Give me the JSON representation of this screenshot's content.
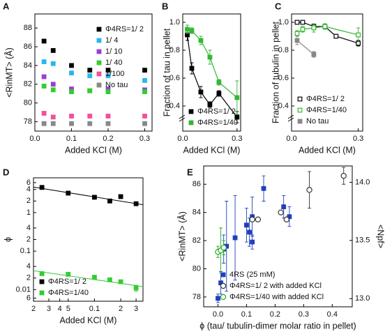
{
  "chart_data": [
    {
      "type": "scatter",
      "panel": "A",
      "xlabel": "Added KCl (M)",
      "ylabel": "<RinMT> (Å)",
      "x": [
        0.025,
        0.05,
        0.1,
        0.15,
        0.2,
        0.3
      ],
      "xlim": [
        0,
        0.32
      ],
      "xticks": [
        {
          "value": 0,
          "label": "0.0"
        },
        0.1,
        0.2,
        0.3
      ],
      "ylim": [
        77,
        89.5
      ],
      "yticks": [
        78,
        80,
        82,
        84,
        86,
        88
      ],
      "legend": "top-right",
      "series": [
        {
          "name": "Φ4RS=1/ 2",
          "color": "#000000",
          "marker": "square",
          "values": [
            86.6,
            85.6,
            84.0,
            83.5,
            83.5,
            83.5
          ]
        },
        {
          "name": "1/ 4",
          "color": "#29b6f0",
          "marker": "square",
          "values": [
            84.4,
            84.2,
            83.2,
            82.9,
            82.9,
            82.4
          ]
        },
        {
          "name": "1/ 10",
          "color": "#9b3fd0",
          "marker": "square",
          "values": [
            82.8,
            82.0,
            81.5,
            81.3,
            81.5,
            81.4
          ]
        },
        {
          "name": "1/ 40",
          "color": "#33cc33",
          "marker": "square",
          "values": [
            81.8,
            81.4,
            81.2,
            81.3,
            81.2,
            81.2
          ]
        },
        {
          "name": "1/100",
          "color": "#f0509a",
          "marker": "square",
          "values": [
            78.9,
            78.5,
            78.6,
            78.6,
            78.6,
            78.6
          ]
        },
        {
          "name": "No tau",
          "color": "#888888",
          "marker": "square",
          "values": [
            77.8,
            77.8,
            77.8,
            77.8,
            77.8,
            77.8
          ]
        }
      ]
    },
    {
      "type": "line",
      "panel": "B",
      "xlabel": "Added KCl (M)",
      "ylabel": "Fraction of tau in pellet",
      "x": [
        0.025,
        0.05,
        0.1,
        0.15,
        0.2,
        0.3
      ],
      "xlim": [
        0,
        0.32
      ],
      "xticks": [
        {
          "value": 0,
          "label": "0.0"
        },
        0.3
      ],
      "ylim": [
        0.22,
        1.06
      ],
      "yticks": [
        0.4,
        0.6,
        0.8,
        {
          "value": 1,
          "label": "1.0"
        }
      ],
      "axis_break": true,
      "legend": "bottom-left",
      "series": [
        {
          "name": "Φ4RS=1/ 2",
          "color": "#000000",
          "marker": "square",
          "values": [
            0.91,
            0.67,
            0.5,
            0.41,
            0.49,
            0.32
          ],
          "errors": [
            0.04,
            0.04,
            0.04,
            0.02,
            0.02,
            0.04
          ]
        },
        {
          "name": "Φ4RS=1/40",
          "color": "#33b833",
          "marker": "square",
          "values": [
            0.95,
            0.94,
            0.87,
            0.75,
            0.57,
            0.46
          ],
          "errors": [
            0.03,
            0.02,
            0.03,
            0.05,
            0.02,
            0.12
          ]
        }
      ]
    },
    {
      "type": "line",
      "panel": "C",
      "xlabel": "Added KCl (M)",
      "ylabel": "Fraction of tubulin in pellet",
      "xlim": [
        0,
        0.32
      ],
      "xticks": [
        {
          "value": 0,
          "label": "0.0"
        },
        0.3
      ],
      "ylim": [
        0.22,
        1.06
      ],
      "yticks": [
        0.4,
        0.6,
        0.8,
        {
          "value": 1,
          "label": "1.0"
        }
      ],
      "axis_break": true,
      "legend": "bottom-right",
      "series": [
        {
          "name": "Φ4RS=1/ 2",
          "color": "#000000",
          "marker": "open-square",
          "x": [
            0.025,
            0.05,
            0.1,
            0.15,
            0.2,
            0.3
          ],
          "values": [
            1.0,
            1.0,
            0.97,
            0.97,
            0.9,
            0.85
          ],
          "errors": [
            0.01,
            0.01,
            0.01,
            0.01,
            0.01,
            0.02
          ]
        },
        {
          "name": "Φ4RS=1/40",
          "color": "#33b833",
          "marker": "open-square",
          "x": [
            0.025,
            0.05,
            0.1,
            0.15,
            0.3
          ],
          "values": [
            0.92,
            0.95,
            0.96,
            0.97,
            0.91
          ],
          "errors": [
            0.02,
            0.02,
            0.03,
            0.02,
            0.05
          ]
        },
        {
          "name": "No tau",
          "color": "#888888",
          "marker": "square",
          "x": [
            0.025,
            0.1
          ],
          "values": [
            0.87,
            0.77
          ],
          "errors": [
            0.03,
            0.02
          ]
        }
      ]
    },
    {
      "type": "scatter",
      "panel": "D",
      "xlabel": "Added KCl (M)",
      "ylabel": "ϕ",
      "xlog": true,
      "ylog": true,
      "x": [
        0.025,
        0.05,
        0.1,
        0.15,
        0.2,
        0.3
      ],
      "xlim": [
        0.02,
        0.36
      ],
      "xticks": [
        {
          "value": 0.02,
          "label": "2"
        },
        {
          "value": 0.03,
          "label": "3"
        },
        {
          "value": 0.04,
          "label": "4"
        },
        {
          "value": 0.05,
          "label": "5"
        },
        0.1,
        {
          "value": 0.2,
          "label": "2"
        },
        {
          "value": 0.3,
          "label": "3"
        }
      ],
      "ylim": [
        0.005,
        8
      ],
      "yticks": [
        6,
        4,
        2,
        1,
        {
          "value": 0.4,
          "label": "4"
        },
        {
          "value": 0.2,
          "label": "2"
        },
        0.1,
        {
          "value": 0.04,
          "label": "4"
        },
        {
          "value": 0.02,
          "label": "2"
        },
        0.01,
        {
          "value": 0.006,
          "label": "6"
        }
      ],
      "legend": "bottom-left",
      "series": [
        {
          "name": "Φ4RS=1/ 2",
          "color": "#000000",
          "marker": "square",
          "values": [
            4.5,
            3.2,
            2.5,
            2.0,
            2.6,
            1.7
          ]
        },
        {
          "name": "Φ4RS=1/40",
          "color": "#33cc33",
          "marker": "square",
          "values": [
            0.026,
            0.025,
            0.021,
            0.018,
            0.016,
            0.011
          ],
          "errors": [
            0.001,
            0.001,
            0.001,
            0.001,
            0.001,
            0.002
          ]
        }
      ],
      "fit_lines": [
        {
          "color": "#000000",
          "x": [
            0.02,
            0.36
          ],
          "values": [
            4.6,
            1.6
          ]
        },
        {
          "color": "#33cc33",
          "x": [
            0.02,
            0.36
          ],
          "values": [
            0.031,
            0.012
          ]
        }
      ]
    },
    {
      "type": "scatter",
      "panel": "E",
      "xlabel": "ϕ (tau/ tubulin-dimer molar ratio in pellet)",
      "ylabel": "<RinMT> (Å)",
      "y2label": "<Npf>",
      "xlim": [
        -0.05,
        0.47
      ],
      "xticks": [
        {
          "value": 0,
          "label": "0.0"
        },
        0.1,
        0.2,
        0.3,
        0.4
      ],
      "ylim": [
        77.3,
        87.3
      ],
      "yticks": [
        78,
        80,
        82,
        84,
        86
      ],
      "y2lim": [
        12.93,
        14.14
      ],
      "y2ticks": [
        {
          "value": 13,
          "label": "13.0"
        },
        {
          "value": 13.5,
          "label": "13.5"
        },
        {
          "value": 14,
          "label": "14.0"
        }
      ],
      "legend": "bottom-right",
      "series": [
        {
          "name": "4RS (25 mM)",
          "color": "#1f3fbf",
          "marker": "square",
          "x": [
            0.0,
            0.01,
            0.02,
            0.03,
            0.06,
            0.1,
            0.11,
            0.12,
            0.12,
            0.16,
            0.23,
            0.25
          ],
          "values": [
            77.9,
            79.0,
            81.4,
            81.6,
            82.2,
            83.1,
            82.6,
            81.9,
            83.7,
            85.7,
            84.4,
            83.7
          ],
          "errors": [
            0.3,
            0.8,
            1.0,
            3.2,
            3.0,
            1.2,
            1.0,
            0.5,
            1.4,
            0.9,
            0.8,
            0.7
          ]
        },
        {
          "name": "Φ4RS=1/ 2 with added KCl",
          "color": "#333333",
          "marker": "open-circle",
          "x": [
            0.12,
            0.14,
            0.22,
            0.24,
            0.32,
            0.44
          ],
          "values": [
            83.5,
            83.5,
            84.0,
            83.5,
            85.6,
            86.6
          ],
          "errors": [
            0,
            0,
            0,
            0,
            1.3,
            0.6
          ]
        },
        {
          "name": "Φ4RS=1/40 with added KCl",
          "color": "#22aa22",
          "marker": "open-circle",
          "x": [
            0.0,
            0.01,
            0.02
          ],
          "values": [
            81.2,
            81.3,
            81.5
          ],
          "errors": [
            0.4,
            1.6,
            0.5
          ]
        }
      ]
    }
  ]
}
